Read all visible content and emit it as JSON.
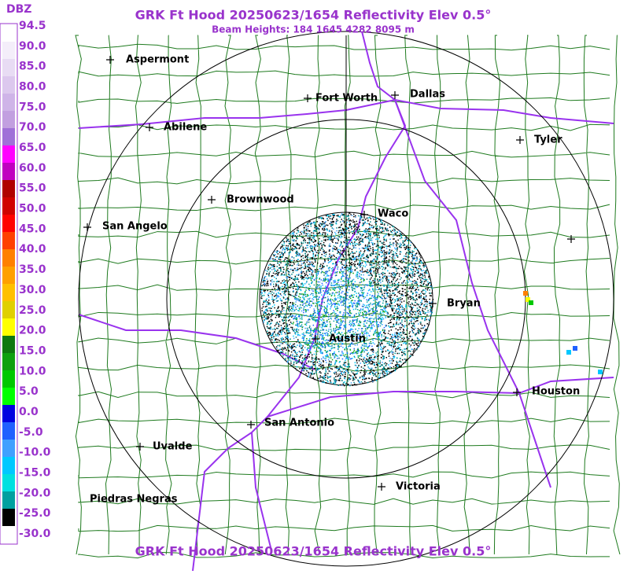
{
  "header": {
    "title": "GRK Ft Hood 20250623/1654 Reflectivity Elev 0.5°",
    "subtitle": "Beam Heights: 184 1645 4282 8095 m"
  },
  "legend": {
    "unit": "DBZ",
    "labels": [
      "94.5",
      "90.0",
      "85.0",
      "80.0",
      "75.0",
      "70.0",
      "65.0",
      "60.0",
      "55.0",
      "50.0",
      "45.0",
      "40.0",
      "35.0",
      "30.0",
      "25.0",
      "20.0",
      "15.0",
      "10.0",
      "5.0",
      "0.0",
      "-5.0",
      "-10.0",
      "-15.0",
      "-20.0",
      "-25.0",
      "-30.0"
    ]
  },
  "cities": [
    "Aspermont",
    "Abilene",
    "Fort Worth",
    "Dallas",
    "Tyler",
    "Brownwood",
    "Waco",
    "San Angelo",
    "Bryan",
    "Austin",
    "Houston",
    "San Antonio",
    "Uvalde",
    "Victoria",
    "Piedras Negras"
  ],
  "footer": {
    "title": "GRK Ft Hood 20250623/1654 Reflectivity Elev 0.5°"
  }
}
